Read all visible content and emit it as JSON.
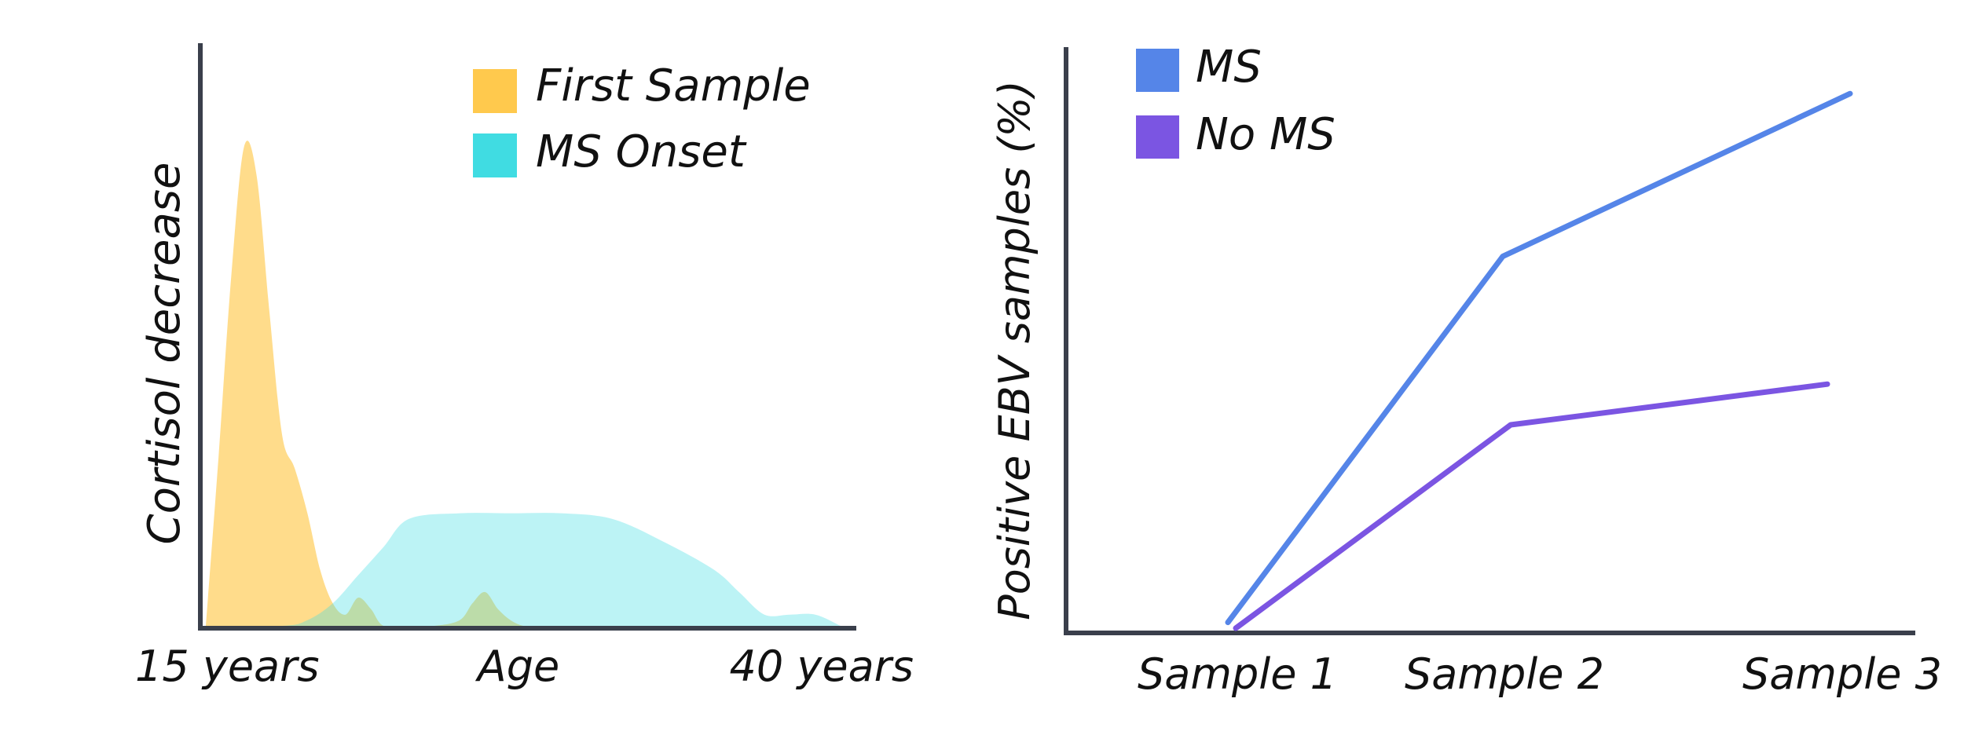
{
  "chart_data": [
    {
      "type": "area",
      "title": "",
      "xlabel": "Age",
      "ylabel": "Cortisol decrease",
      "x_tick_labels": [
        "15 years",
        "40 years"
      ],
      "xlim": [
        15,
        40
      ],
      "ylim": [
        0,
        1
      ],
      "grid": false,
      "legend_position": "top-right",
      "series": [
        {
          "name": "First Sample",
          "color": "#ffc94d",
          "x": [
            15,
            15.5,
            16,
            16.5,
            17,
            17.5,
            18,
            18.5,
            19,
            19.5,
            20,
            20.5,
            21,
            21.5,
            22,
            23,
            24,
            25,
            25.5,
            26,
            26.5,
            27,
            27.5,
            28,
            29,
            40
          ],
          "values": [
            0,
            0.3,
            0.62,
            0.85,
            0.8,
            0.56,
            0.34,
            0.28,
            0.2,
            0.1,
            0.04,
            0.02,
            0.05,
            0.03,
            0,
            0,
            0,
            0.01,
            0.04,
            0.06,
            0.03,
            0.01,
            0,
            0,
            0,
            0
          ]
        },
        {
          "name": "MS Onset",
          "color": "#40dce2",
          "x": [
            15,
            18,
            19,
            20,
            21,
            22,
            23,
            25,
            27,
            29,
            31,
            33,
            35,
            36,
            37,
            38,
            39,
            40
          ],
          "values": [
            0,
            0,
            0.01,
            0.04,
            0.09,
            0.14,
            0.19,
            0.2,
            0.2,
            0.2,
            0.19,
            0.15,
            0.1,
            0.06,
            0.02,
            0.02,
            0.02,
            0
          ]
        }
      ]
    },
    {
      "type": "line",
      "title": "",
      "xlabel": "",
      "ylabel": "Positive EBV samples (%)",
      "categories": [
        "Sample 1",
        "Sample 2",
        "Sample 3"
      ],
      "ylim": [
        0,
        100
      ],
      "grid": false,
      "legend_position": "top-left",
      "series": [
        {
          "name": "MS",
          "color": "#5585e8",
          "values": [
            1,
            64,
            92
          ]
        },
        {
          "name": "No MS",
          "color": "#7b55e2",
          "values": [
            0,
            35,
            42
          ]
        }
      ]
    }
  ]
}
